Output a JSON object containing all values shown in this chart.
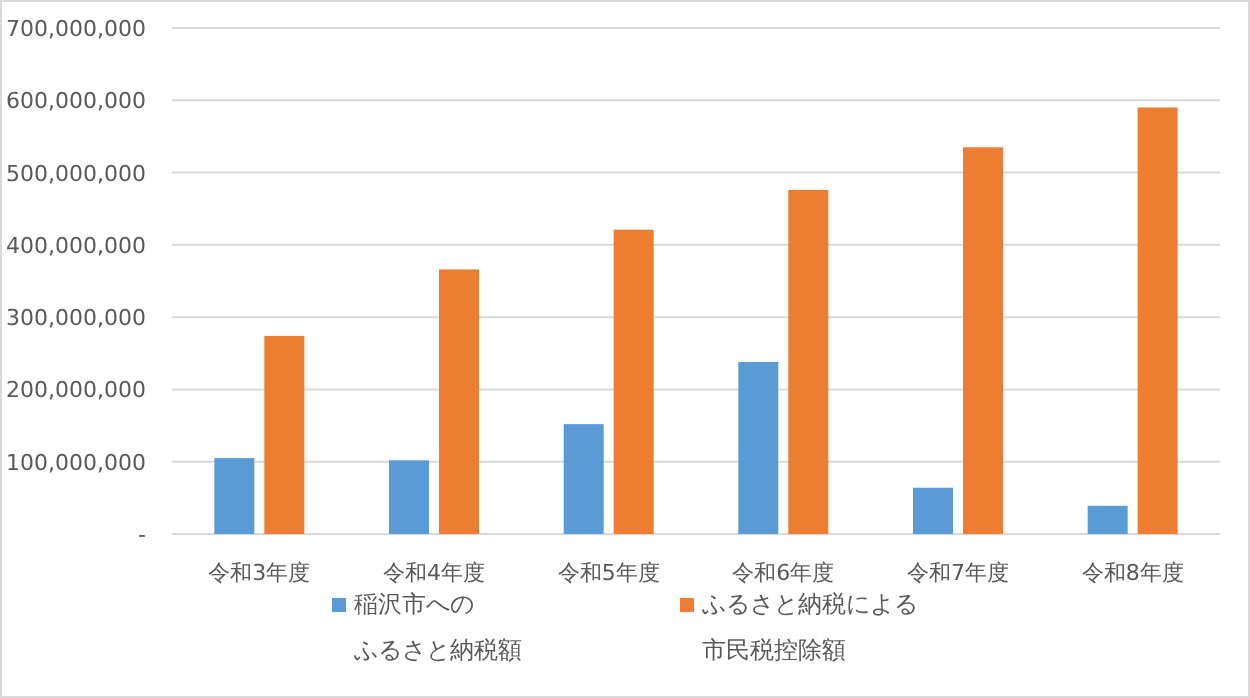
{
  "chart_data": {
    "type": "bar",
    "categories": [
      "令和3年度",
      "令和4年度",
      "令和5年度",
      "令和6年度",
      "令和7年度",
      "令和8年度"
    ],
    "series": [
      {
        "name": "稲沢市へのふるさと納税額",
        "color": "#5b9bd5",
        "values": [
          105000000,
          102000000,
          152000000,
          238000000,
          64000000,
          39000000
        ]
      },
      {
        "name": "ふるさと納税による市民税控除額",
        "color": "#ed7d31",
        "values": [
          274000000,
          366000000,
          421000000,
          476000000,
          535000000,
          590000000
        ]
      }
    ],
    "ylim": [
      0,
      700000000
    ],
    "yticks": [
      {
        "value": 0,
        "label": "-"
      },
      {
        "value": 100000000,
        "label": "100,000,000"
      },
      {
        "value": 200000000,
        "label": "200,000,000"
      },
      {
        "value": 300000000,
        "label": "300,000,000"
      },
      {
        "value": 400000000,
        "label": "400,000,000"
      },
      {
        "value": 500000000,
        "label": "500,000,000"
      },
      {
        "value": 600000000,
        "label": "600,000,000"
      },
      {
        "value": 700000000,
        "label": "700,000,000"
      }
    ],
    "grid": "y",
    "legend": "bottom"
  }
}
